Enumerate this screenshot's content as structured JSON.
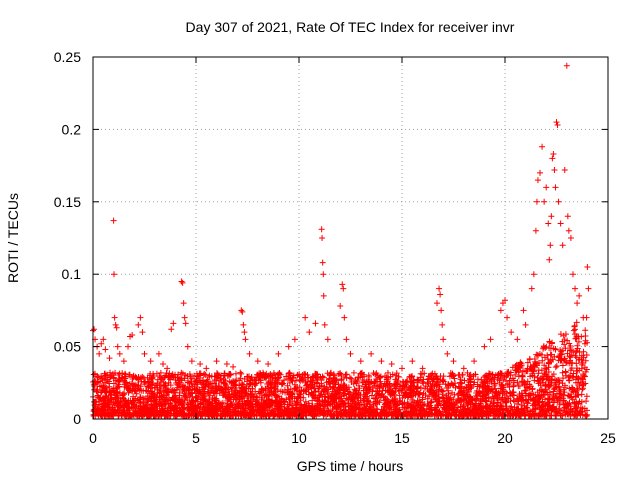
{
  "chart_data": {
    "type": "scatter",
    "title": "Day 307 of 2021, Rate Of TEC Index for receiver invr",
    "xlabel": "GPS time / hours",
    "ylabel": "ROTI / TECUs",
    "xlim": [
      0,
      25
    ],
    "ylim": [
      0,
      0.25
    ],
    "xticks": [
      0,
      5,
      10,
      15,
      20,
      25
    ],
    "yticks": [
      0,
      0.05,
      0.1,
      0.15,
      0.2,
      0.25
    ],
    "xtick_labels": [
      "0",
      "5",
      "10",
      "15",
      "20",
      "25"
    ],
    "ytick_labels": [
      "0",
      "0.05",
      "0.1",
      "0.15",
      "0.2",
      "0.25"
    ],
    "grid": true,
    "marker": "+",
    "color": "#ff0000",
    "background_band": {
      "x_range": [
        0,
        24
      ],
      "baseline_max_approx": 0.03
    },
    "series": [
      {
        "name": "ROTI",
        "points": [
          [
            0.0,
            0.061
          ],
          [
            0.05,
            0.062
          ],
          [
            0.1,
            0.055
          ],
          [
            0.2,
            0.05
          ],
          [
            0.3,
            0.045
          ],
          [
            0.4,
            0.052
          ],
          [
            0.5,
            0.055
          ],
          [
            0.6,
            0.048
          ],
          [
            0.8,
            0.042
          ],
          [
            1.0,
            0.137
          ],
          [
            1.02,
            0.1
          ],
          [
            1.05,
            0.07
          ],
          [
            1.1,
            0.065
          ],
          [
            1.15,
            0.063
          ],
          [
            1.2,
            0.05
          ],
          [
            1.3,
            0.045
          ],
          [
            1.5,
            0.04
          ],
          [
            1.7,
            0.05
          ],
          [
            1.8,
            0.057
          ],
          [
            1.9,
            0.058
          ],
          [
            2.2,
            0.065
          ],
          [
            2.3,
            0.07
          ],
          [
            2.4,
            0.06
          ],
          [
            2.5,
            0.045
          ],
          [
            2.8,
            0.04
          ],
          [
            3.2,
            0.045
          ],
          [
            3.4,
            0.038
          ],
          [
            3.6,
            0.035
          ],
          [
            3.8,
            0.062
          ],
          [
            3.9,
            0.066
          ],
          [
            4.3,
            0.095
          ],
          [
            4.35,
            0.094
          ],
          [
            4.4,
            0.08
          ],
          [
            4.45,
            0.07
          ],
          [
            4.5,
            0.066
          ],
          [
            4.6,
            0.05
          ],
          [
            4.8,
            0.04
          ],
          [
            5.2,
            0.038
          ],
          [
            5.5,
            0.035
          ],
          [
            6.0,
            0.04
          ],
          [
            6.5,
            0.038
          ],
          [
            6.8,
            0.036
          ],
          [
            7.2,
            0.075
          ],
          [
            7.25,
            0.074
          ],
          [
            7.3,
            0.065
          ],
          [
            7.35,
            0.06
          ],
          [
            7.4,
            0.055
          ],
          [
            7.6,
            0.045
          ],
          [
            8.0,
            0.04
          ],
          [
            8.5,
            0.038
          ],
          [
            9.0,
            0.045
          ],
          [
            9.5,
            0.05
          ],
          [
            9.8,
            0.055
          ],
          [
            10.3,
            0.07
          ],
          [
            10.5,
            0.06
          ],
          [
            10.8,
            0.066
          ],
          [
            11.1,
            0.131
          ],
          [
            11.12,
            0.125
          ],
          [
            11.15,
            0.108
          ],
          [
            11.18,
            0.1
          ],
          [
            11.2,
            0.085
          ],
          [
            11.25,
            0.065
          ],
          [
            11.4,
            0.055
          ],
          [
            12.0,
            0.078
          ],
          [
            12.1,
            0.093
          ],
          [
            12.15,
            0.09
          ],
          [
            12.2,
            0.07
          ],
          [
            12.3,
            0.055
          ],
          [
            12.5,
            0.045
          ],
          [
            13.0,
            0.04
          ],
          [
            13.5,
            0.045
          ],
          [
            14.0,
            0.04
          ],
          [
            14.5,
            0.038
          ],
          [
            15.0,
            0.035
          ],
          [
            15.5,
            0.04
          ],
          [
            16.0,
            0.035
          ],
          [
            16.7,
            0.08
          ],
          [
            16.8,
            0.09
          ],
          [
            16.85,
            0.086
          ],
          [
            16.9,
            0.075
          ],
          [
            16.95,
            0.065
          ],
          [
            17.0,
            0.055
          ],
          [
            17.2,
            0.045
          ],
          [
            17.5,
            0.04
          ],
          [
            18.0,
            0.035
          ],
          [
            18.5,
            0.04
          ],
          [
            19.0,
            0.05
          ],
          [
            19.3,
            0.055
          ],
          [
            19.8,
            0.075
          ],
          [
            19.9,
            0.08
          ],
          [
            20.0,
            0.082
          ],
          [
            20.1,
            0.07
          ],
          [
            20.3,
            0.06
          ],
          [
            20.6,
            0.055
          ],
          [
            20.9,
            0.075
          ],
          [
            21.0,
            0.065
          ],
          [
            21.3,
            0.09
          ],
          [
            21.4,
            0.1
          ],
          [
            21.5,
            0.13
          ],
          [
            21.55,
            0.15
          ],
          [
            21.6,
            0.165
          ],
          [
            21.7,
            0.17
          ],
          [
            21.8,
            0.188
          ],
          [
            21.9,
            0.15
          ],
          [
            22.0,
            0.16
          ],
          [
            22.1,
            0.135
          ],
          [
            22.15,
            0.11
          ],
          [
            22.2,
            0.12
          ],
          [
            22.25,
            0.14
          ],
          [
            22.3,
            0.18
          ],
          [
            22.35,
            0.183
          ],
          [
            22.4,
            0.172
          ],
          [
            22.45,
            0.16
          ],
          [
            22.5,
            0.205
          ],
          [
            22.55,
            0.203
          ],
          [
            22.6,
            0.15
          ],
          [
            22.7,
            0.135
          ],
          [
            22.8,
            0.12
          ],
          [
            22.9,
            0.172
          ],
          [
            23.0,
            0.244
          ],
          [
            23.05,
            0.14
          ],
          [
            23.1,
            0.13
          ],
          [
            23.2,
            0.125
          ],
          [
            23.3,
            0.1
          ],
          [
            23.4,
            0.09
          ],
          [
            23.5,
            0.08
          ],
          [
            23.6,
            0.085
          ],
          [
            23.8,
            0.07
          ],
          [
            24.0,
            0.105
          ],
          [
            24.05,
            0.09
          ]
        ]
      }
    ]
  }
}
